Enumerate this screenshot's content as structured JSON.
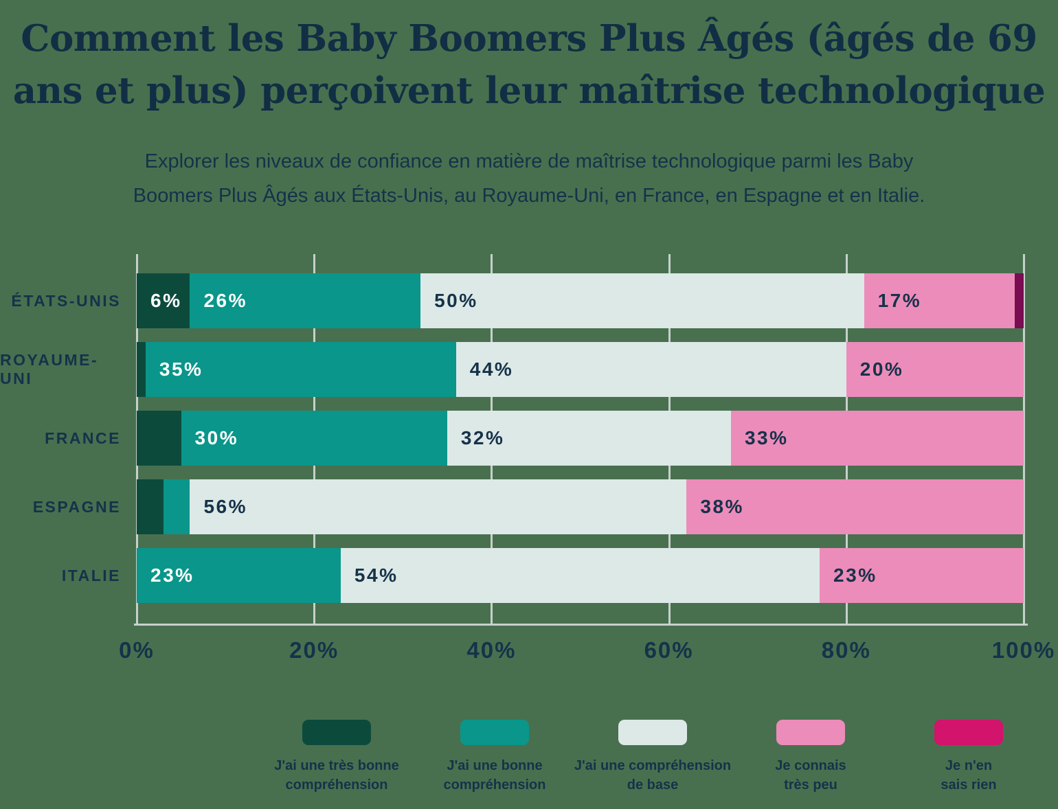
{
  "title": {
    "line1": "Comment les Baby Boomers Plus Âgés (âgés de 69",
    "line2": "ans et plus) perçoivent leur maîtrise technologique"
  },
  "subtitle": {
    "line1": "Explorer les niveaux de confiance en matière de maîtrise technologique parmi les Baby",
    "line2": "Boomers Plus Âgés aux États-Unis, au Royaume-Uni, en France, en Espagne et en Italie."
  },
  "colors": {
    "background": "#48704f",
    "text_navy": "#16324a",
    "title_navy": "#122e44",
    "gridline": "#c7d1cb",
    "label_on_dark": "#ffffff",
    "label_on_light": "#16324a"
  },
  "chart_data": {
    "type": "bar",
    "orientation": "horizontal-stacked",
    "title": "Comment les Baby Boomers Plus Âgés (âgés de 69 ans et plus) perçoivent leur maîtrise technologique",
    "categories": [
      "ÉTATS-UNIS",
      "ROYAUME-UNI",
      "FRANCE",
      "ESPAGNE",
      "ITALIE"
    ],
    "series": [
      {
        "name": "J'ai une très bonne compréhension",
        "legend_label": "J'ai une très bonne\ncompréhension",
        "color": "#0c4b3c",
        "legend_color": "#0c4b3c",
        "label_color": "#ffffff",
        "values": [
          6,
          1,
          5,
          3,
          0
        ]
      },
      {
        "name": "J'ai une bonne compréhension",
        "legend_label": "J'ai une bonne\ncompréhension",
        "color": "#0a968a",
        "legend_color": "#0a968a",
        "label_color": "#ffffff",
        "values": [
          26,
          35,
          30,
          3,
          23
        ]
      },
      {
        "name": "J'ai une compréhension de base",
        "legend_label": "J'ai une compréhension\nde base",
        "color": "#dde9e6",
        "legend_color": "#dde9e6",
        "label_color": "#16324a",
        "values": [
          50,
          44,
          32,
          56,
          54
        ]
      },
      {
        "name": "Je connais très peu",
        "legend_label": "Je connais\ntrès peu",
        "color": "#ec8cba",
        "legend_color": "#ec8cba",
        "label_color": "#16324a",
        "values": [
          17,
          20,
          33,
          38,
          23
        ]
      },
      {
        "name": "Je n'en sais rien",
        "legend_label": "Je n'en\nsais rien",
        "color": "#7a0c51",
        "legend_color": "#d2146c",
        "label_color": "#ffffff",
        "values": [
          1,
          0,
          0,
          0,
          0
        ]
      }
    ],
    "x_ticks": [
      "0%",
      "20%",
      "40%",
      "60%",
      "80%",
      "100%"
    ],
    "xlim": [
      0,
      100
    ],
    "value_suffix": "%",
    "label_min_value": 6,
    "grid": true,
    "legend_position": "bottom"
  }
}
